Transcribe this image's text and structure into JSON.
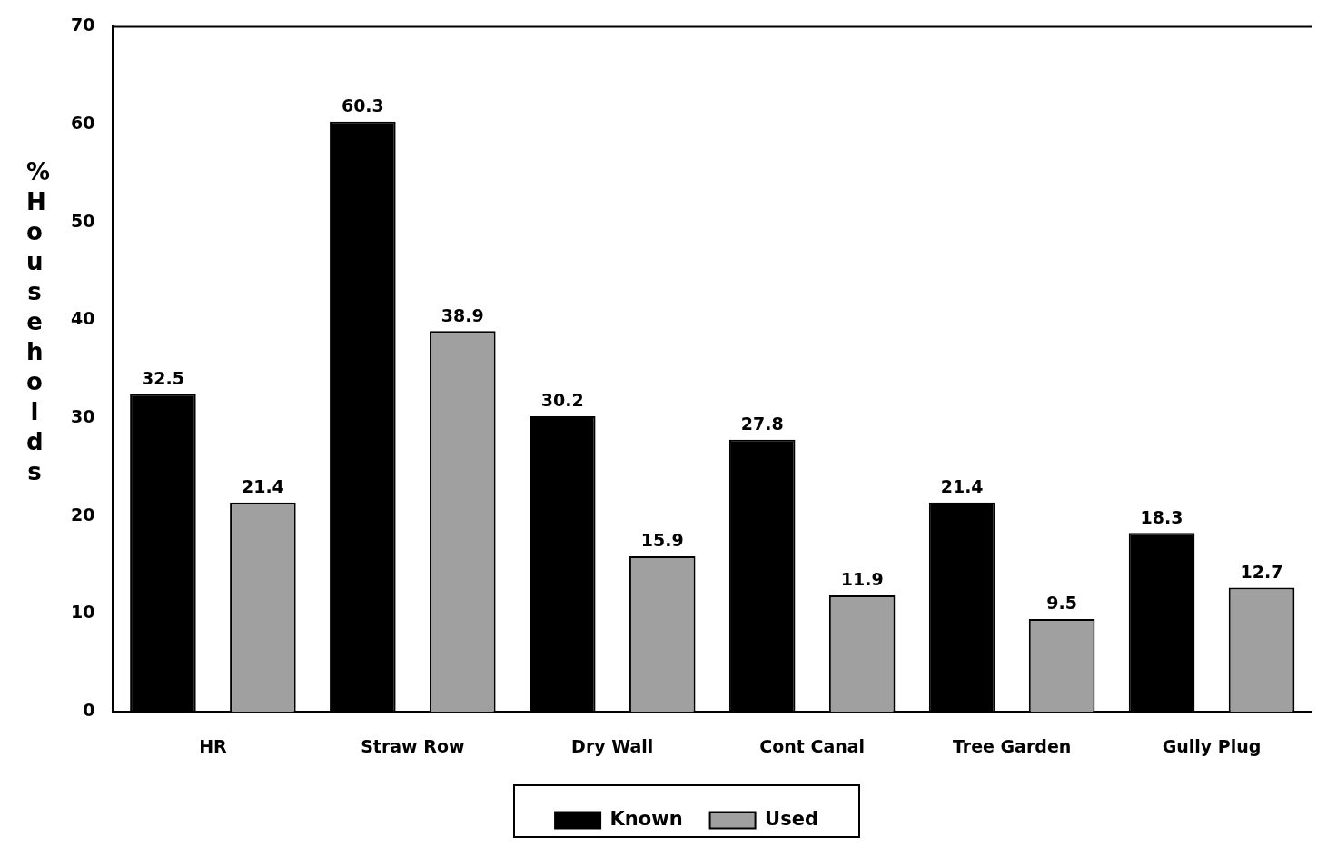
{
  "chart_data": {
    "type": "bar",
    "ylabel": "% Households",
    "categories": [
      "HR",
      "Straw Row",
      "Dry Wall",
      "Cont Canal",
      "Tree Garden",
      "Gully Plug"
    ],
    "series": [
      {
        "name": "Known",
        "color": "#000000",
        "values": [
          32.5,
          60.3,
          30.2,
          27.8,
          21.4,
          18.3
        ]
      },
      {
        "name": "Used",
        "color": "#a0a0a0",
        "values": [
          21.4,
          38.9,
          15.9,
          11.9,
          9.5,
          12.7
        ]
      }
    ],
    "ylim": [
      0,
      70
    ],
    "yticks": [
      0,
      10,
      20,
      30,
      40,
      50,
      60,
      70
    ],
    "grid": false,
    "legend": "bottom",
    "data_labels": true
  }
}
